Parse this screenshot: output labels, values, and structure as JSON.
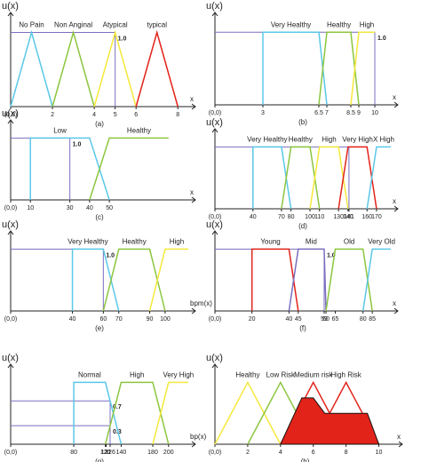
{
  "chart_data": [
    {
      "type": "line",
      "ylabel": "u(x)",
      "xlabel": "x",
      "caption": "(a)",
      "xlim": [
        0,
        8.5
      ],
      "ylim": [
        0,
        1.15
      ],
      "xticks": [
        {
          "value": 0,
          "label": "(0,0)"
        },
        2,
        4,
        5,
        6,
        8
      ],
      "yticks": [
        {
          "value": 1,
          "label": "1.0"
        }
      ],
      "guides": [
        {
          "x": 5,
          "y": 1
        }
      ],
      "series": [
        {
          "name": "No Pain",
          "color": "#5bc8e8",
          "x": [
            0,
            1,
            2
          ],
          "values": [
            0,
            1,
            0
          ]
        },
        {
          "name": "Non Anginal",
          "color": "#8cc63f",
          "x": [
            2,
            3,
            4
          ],
          "values": [
            0,
            1,
            0
          ]
        },
        {
          "name": "Atypical",
          "color": "#f5e83c",
          "x": [
            4,
            5,
            6
          ],
          "values": [
            0,
            1,
            0
          ]
        },
        {
          "name": "typical",
          "color": "#e2231a",
          "x": [
            6,
            7,
            8
          ],
          "values": [
            0,
            1,
            0
          ]
        }
      ]
    },
    {
      "type": "line",
      "ylabel": "u(x)",
      "xlabel": "x",
      "caption": "(b)",
      "xlim": [
        0,
        11
      ],
      "ylim": [
        0,
        1.15
      ],
      "xticks": [
        {
          "value": 0,
          "label": "(0,0)"
        },
        3,
        6.5,
        7,
        8.5,
        9,
        10
      ],
      "yticks": [
        {
          "value": 1,
          "label": "1.0"
        }
      ],
      "guides": [
        {
          "x": 10,
          "y": 1
        }
      ],
      "series": [
        {
          "name": "Very Healthy",
          "color": "#5bc8e8",
          "x": [
            3,
            3,
            6.5,
            7
          ],
          "values": [
            0,
            1,
            1,
            0
          ]
        },
        {
          "name": "Healthy",
          "color": "#8cc63f",
          "x": [
            6.5,
            7,
            8.5,
            9
          ],
          "values": [
            0,
            1,
            1,
            0
          ]
        },
        {
          "name": "High",
          "color": "#f5e83c",
          "x": [
            8.5,
            9,
            10
          ],
          "values": [
            0,
            1,
            1
          ]
        }
      ]
    },
    {
      "type": "line",
      "ylabel": "u(x)",
      "xlabel": "x",
      "caption": "(c)",
      "xlim": [
        0,
        90
      ],
      "ylim": [
        0,
        1.15
      ],
      "xticks": [
        {
          "value": 0,
          "label": "(0,0)"
        },
        10,
        30,
        40,
        50
      ],
      "yticks": [
        {
          "value": 1,
          "label": "1.0"
        }
      ],
      "guides": [
        {
          "x": 30,
          "y": 1
        }
      ],
      "series": [
        {
          "name": "Low",
          "color": "#5bc8e8",
          "x": [
            10,
            10,
            40,
            50
          ],
          "values": [
            0,
            1,
            1,
            0
          ]
        },
        {
          "name": "Healthy",
          "color": "#8cc63f",
          "x": [
            40,
            50,
            80
          ],
          "values": [
            0,
            1,
            1
          ]
        }
      ]
    },
    {
      "type": "line",
      "ylabel": "u(x)",
      "xlabel": "x",
      "caption": "(d)",
      "xlim": [
        0,
        185
      ],
      "ylim": [
        0,
        1.15
      ],
      "xticks": [
        {
          "value": 0,
          "label": "(0,0)"
        },
        40,
        70,
        80,
        100,
        110,
        130,
        140,
        141,
        160,
        170
      ],
      "yticks": [],
      "guides": [
        {
          "x": 141,
          "y": 1
        }
      ],
      "series": [
        {
          "name": "Very Healthy",
          "color": "#5bc8e8",
          "x": [
            40,
            40,
            70,
            80
          ],
          "values": [
            0,
            1,
            1,
            0
          ]
        },
        {
          "name": "Healthy",
          "color": "#8cc63f",
          "x": [
            70,
            80,
            100,
            110
          ],
          "values": [
            0,
            1,
            1,
            0
          ]
        },
        {
          "name": "High",
          "color": "#f5e83c",
          "x": [
            100,
            110,
            130,
            140
          ],
          "values": [
            0,
            1,
            1,
            0
          ]
        },
        {
          "name": "Very High",
          "color": "#e2231a",
          "x": [
            130,
            140,
            160,
            170
          ],
          "values": [
            0,
            1,
            1,
            0
          ]
        },
        {
          "name": "X High",
          "color": "#5bc8e8",
          "x": [
            160,
            170,
            185
          ],
          "values": [
            0,
            1,
            1
          ]
        }
      ]
    },
    {
      "type": "line",
      "ylabel": "u(x)",
      "xlabel": "bpm(x)",
      "caption": "(e)",
      "xlim": [
        0,
        115
      ],
      "ylim": [
        0,
        1.15
      ],
      "xticks": [
        {
          "value": 0,
          "label": "(0,0)"
        },
        40,
        60,
        70,
        90,
        100
      ],
      "yticks": [
        {
          "value": 1,
          "label": "1.0"
        }
      ],
      "guides": [
        {
          "x": 60,
          "y": 1
        }
      ],
      "series": [
        {
          "name": "Very Healthy",
          "color": "#5bc8e8",
          "x": [
            40,
            40,
            60,
            70
          ],
          "values": [
            0,
            1,
            1,
            0
          ]
        },
        {
          "name": "Healthy",
          "color": "#8cc63f",
          "x": [
            60,
            70,
            90,
            100
          ],
          "values": [
            0,
            1,
            1,
            0
          ]
        },
        {
          "name": "High",
          "color": "#f5e83c",
          "x": [
            90,
            100,
            115
          ],
          "values": [
            0,
            1,
            1
          ]
        }
      ]
    },
    {
      "type": "line",
      "ylabel": "u(x)",
      "xlabel": "x",
      "caption": "(f)",
      "xlim": [
        0,
        95
      ],
      "ylim": [
        0,
        1.15
      ],
      "xticks": [
        {
          "value": 0,
          "label": "(0,0)"
        },
        20,
        40,
        45,
        59,
        60,
        65,
        80,
        85
      ],
      "yticks": [
        {
          "value": 1,
          "label": "1.0"
        }
      ],
      "guides": [
        {
          "x": 59,
          "y": 1
        }
      ],
      "series": [
        {
          "name": "Young",
          "color": "#e2231a",
          "x": [
            20,
            20,
            40,
            45
          ],
          "values": [
            0,
            1,
            1,
            0
          ]
        },
        {
          "name": "Mid",
          "color": "#7a6fc0",
          "x": [
            40,
            45,
            59,
            60
          ],
          "values": [
            0,
            1,
            1,
            0
          ]
        },
        {
          "name": "Old",
          "color": "#8cc63f",
          "x": [
            60,
            65,
            80,
            85
          ],
          "values": [
            0,
            1,
            1,
            0
          ]
        },
        {
          "name": "Very Old",
          "color": "#5bc8e8",
          "x": [
            80,
            85,
            95
          ],
          "values": [
            0,
            1,
            1
          ]
        }
      ]
    },
    {
      "type": "line",
      "ylabel": "u(x)",
      "xlabel": "bp(x)",
      "caption": "(g)",
      "xlim": [
        0,
        225
      ],
      "ylim": [
        0,
        1.15
      ],
      "xticks": [
        {
          "value": 0,
          "label": "(0,0)"
        },
        80,
        120,
        121,
        126,
        140,
        180,
        200
      ],
      "yticks": [
        0.7,
        0.3
      ],
      "guides": [
        {
          "x": 126,
          "y": 0.7
        },
        {
          "x": 126,
          "y": 0.3
        }
      ],
      "series": [
        {
          "name": "Normal",
          "color": "#5bc8e8",
          "x": [
            80,
            80,
            120,
            140
          ],
          "values": [
            0,
            1,
            1,
            0
          ]
        },
        {
          "name": "High",
          "color": "#8cc63f",
          "x": [
            120,
            140,
            180,
            200
          ],
          "values": [
            0,
            1,
            1,
            0
          ]
        },
        {
          "name": "Very High",
          "color": "#f5e83c",
          "x": [
            180,
            200,
            225
          ],
          "values": [
            0,
            1,
            1
          ]
        }
      ]
    },
    {
      "type": "line",
      "ylabel": "u(x)",
      "xlabel": "x",
      "caption": "(h)",
      "xlim": [
        0,
        11
      ],
      "ylim": [
        0,
        1.15
      ],
      "xticks": [
        {
          "value": 0,
          "label": "(0,0)"
        },
        2,
        4,
        6,
        8,
        10
      ],
      "yticks": [],
      "guides": [],
      "series": [
        {
          "name": "Healthy",
          "color": "#f5e83c",
          "x": [
            0,
            2,
            4
          ],
          "values": [
            0,
            1,
            0
          ]
        },
        {
          "name": "Low Risk",
          "color": "#8cc63f",
          "x": [
            2,
            4,
            6
          ],
          "values": [
            0,
            1,
            0
          ]
        },
        {
          "name": "Medium risk",
          "color": "#e2231a",
          "x": [
            4,
            6,
            8
          ],
          "values": [
            0,
            1,
            0
          ]
        },
        {
          "name": "High Risk",
          "color": "#e2231a",
          "x": [
            6,
            8,
            10
          ],
          "values": [
            0,
            1,
            0
          ]
        },
        {
          "color": "#e2231a",
          "fill": true,
          "x": [
            4,
            5.3,
            6,
            6.7,
            9.3,
            10
          ],
          "values": [
            0,
            0.75,
            0.75,
            0.5,
            0.5,
            0
          ]
        }
      ]
    }
  ]
}
